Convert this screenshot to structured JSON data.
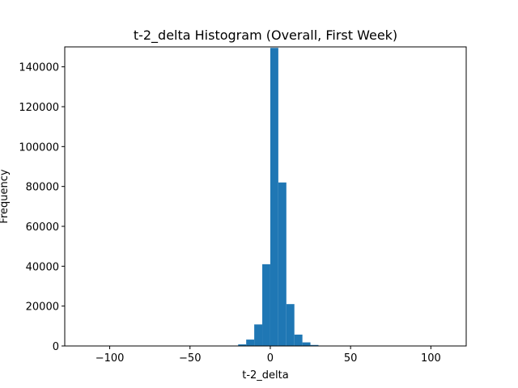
{
  "chart_data": {
    "type": "bar",
    "title": "t-2_delta Histogram (Overall, First Week)",
    "xlabel": "t-2_delta",
    "ylabel": "Frequency",
    "xlim": [
      -128,
      122
    ],
    "ylim": [
      0,
      150000
    ],
    "x_ticks": [
      -100,
      -50,
      0,
      50,
      100
    ],
    "x_tick_labels": [
      "−100",
      "−50",
      "0",
      "50",
      "100"
    ],
    "y_ticks": [
      0,
      20000,
      40000,
      60000,
      80000,
      100000,
      120000,
      140000
    ],
    "y_tick_labels": [
      "0",
      "20000",
      "40000",
      "60000",
      "80000",
      "100000",
      "120000",
      "140000"
    ],
    "grid": false,
    "bar_color": "#1f77b4",
    "bins": [
      {
        "x0": -25,
        "x1": -20,
        "value": 200
      },
      {
        "x0": -20,
        "x1": -15,
        "value": 800
      },
      {
        "x0": -15,
        "x1": -10,
        "value": 3200
      },
      {
        "x0": -10,
        "x1": -5,
        "value": 10800
      },
      {
        "x0": -5,
        "x1": 0,
        "value": 41000
      },
      {
        "x0": 0,
        "x1": 5,
        "value": 149500
      },
      {
        "x0": 5,
        "x1": 10,
        "value": 82000
      },
      {
        "x0": 10,
        "x1": 15,
        "value": 21000
      },
      {
        "x0": 15,
        "x1": 20,
        "value": 5700
      },
      {
        "x0": 20,
        "x1": 25,
        "value": 1800
      },
      {
        "x0": 25,
        "x1": 30,
        "value": 500
      }
    ]
  }
}
